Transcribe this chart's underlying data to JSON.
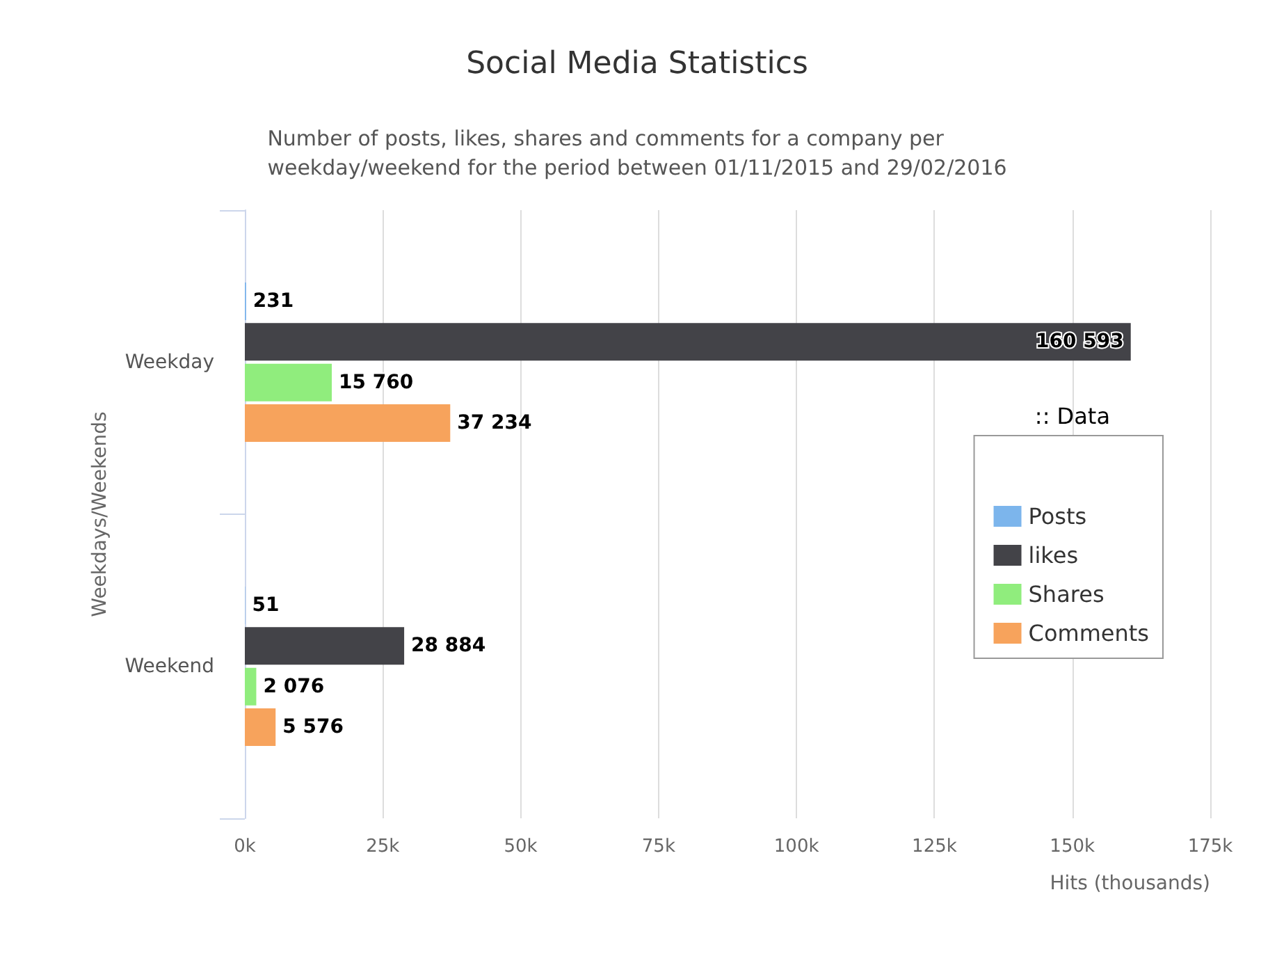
{
  "chart_data": {
    "type": "bar",
    "orientation": "horizontal",
    "title": "Social Media Statistics",
    "subtitle": "Number of posts, likes, shares and comments for a company per\nweekday/weekend for the period between 01/11/2015 and 29/02/2016",
    "xlabel": "Hits (thousands)",
    "ylabel": "Weekdays/Weekends",
    "legend_title": ":: Data",
    "categories": [
      "Weekday",
      "Weekend"
    ],
    "series": [
      {
        "name": "Posts",
        "color": "#7cb5ec",
        "values": [
          231,
          51
        ],
        "value_labels": [
          "231",
          "51"
        ]
      },
      {
        "name": "likes",
        "color": "#434348",
        "values": [
          160593,
          28884
        ],
        "value_labels": [
          "160 593",
          "28 884"
        ]
      },
      {
        "name": "Shares",
        "color": "#90ed7d",
        "values": [
          15760,
          2076
        ],
        "value_labels": [
          "15 760",
          "2 076"
        ]
      },
      {
        "name": "Comments",
        "color": "#f7a35c",
        "values": [
          37234,
          5576
        ],
        "value_labels": [
          "37 234",
          "5 576"
        ]
      }
    ],
    "xlim": [
      0,
      175000
    ],
    "xticks": [
      {
        "value": 0,
        "label": "0k"
      },
      {
        "value": 25000,
        "label": "25k"
      },
      {
        "value": 50000,
        "label": "50k"
      },
      {
        "value": 75000,
        "label": "75k"
      },
      {
        "value": 100000,
        "label": "100k"
      },
      {
        "value": 125000,
        "label": "125k"
      },
      {
        "value": 150000,
        "label": "150k"
      },
      {
        "value": 175000,
        "label": "175k"
      }
    ],
    "grid": "x",
    "legend": "right"
  }
}
